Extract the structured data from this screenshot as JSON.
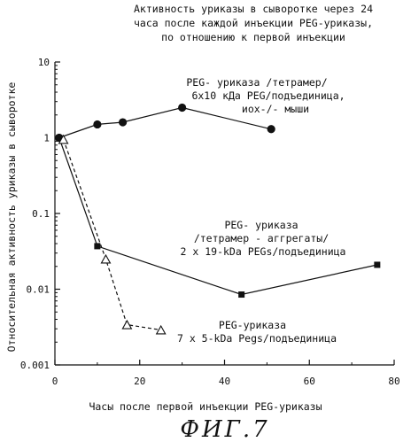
{
  "chart_data": {
    "type": "line",
    "title_lines": [
      "Активность уриказы в сыворотке через 24",
      "часа после каждой инъекции PEG-уриказы,",
      "по отношению к первой инъекции"
    ],
    "xlabel": "Часы после первой инъекции PEG-уриказы",
    "ylabel": "Относительная активность уриказы в сыворотке",
    "xlim": [
      0,
      80
    ],
    "ylim": [
      0.001,
      10
    ],
    "yscale": "log",
    "xticks": [
      "0",
      "20",
      "40",
      "60",
      "80"
    ],
    "yticks": [
      "0.001",
      "0.01",
      "0.1",
      "1",
      "10"
    ],
    "series": [
      {
        "name_lines": [
          "PEG- уриказа /тетрамер/",
          "6x10 кДа PEG/подъединица,",
          "иox-/- мыши"
        ],
        "marker": "circle",
        "line": "solid",
        "x": [
          1,
          10,
          16,
          30,
          51
        ],
        "y": [
          1.0,
          1.5,
          1.6,
          2.5,
          1.3
        ]
      },
      {
        "name_lines": [
          "PEG- уриказа",
          "/тетрамер - аггрегаты/",
          "2 x 19-kDa PEGs/подъединица"
        ],
        "marker": "square",
        "line": "solid",
        "x": [
          1,
          10,
          44,
          76
        ],
        "y": [
          1.0,
          0.037,
          0.0085,
          0.021
        ]
      },
      {
        "name_lines": [
          "PEG-уриказа",
          "7 x 5-kDa Pegs/подъединица"
        ],
        "marker": "triangle",
        "line": "dashed",
        "x": [
          2,
          12,
          17,
          25
        ],
        "y": [
          0.95,
          0.025,
          0.0034,
          0.0029
        ]
      }
    ]
  },
  "figure_label": "ФИГ.7"
}
